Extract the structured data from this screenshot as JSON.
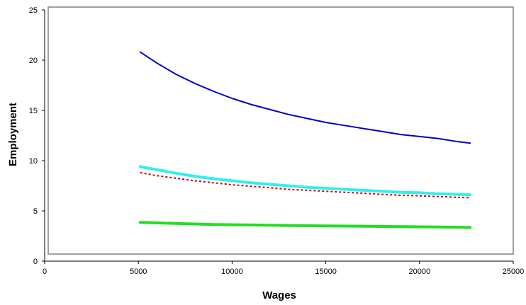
{
  "chart_data": {
    "type": "line",
    "title": "",
    "xlabel": "Wages",
    "ylabel": "Employment",
    "xlim": [
      0,
      25000
    ],
    "ylim": [
      0,
      25
    ],
    "x_ticks": [
      0,
      5000,
      10000,
      15000,
      20000,
      25000
    ],
    "y_ticks": [
      0,
      5,
      10,
      15,
      20,
      25
    ],
    "grid": false,
    "legend": "none",
    "plot_area_fill": "#ffffff",
    "series": [
      {
        "color": "#0000cc",
        "style": "solid-thin",
        "x": [
          5100,
          6000,
          7000,
          8000,
          9000,
          10000,
          11000,
          12000,
          13000,
          14000,
          15000,
          16000,
          17000,
          18000,
          19000,
          20000,
          21000,
          22000,
          22700
        ],
        "y": [
          20.8,
          19.7,
          18.6,
          17.7,
          16.9,
          16.2,
          15.6,
          15.1,
          14.6,
          14.2,
          13.8,
          13.5,
          13.2,
          12.9,
          12.6,
          12.4,
          12.2,
          11.9,
          11.75
        ]
      },
      {
        "color": "#33eeee",
        "style": "solid-thick",
        "x": [
          5100,
          6000,
          7000,
          8000,
          9000,
          10000,
          11000,
          12000,
          13000,
          14000,
          15000,
          16000,
          17000,
          18000,
          19000,
          20000,
          21000,
          22000,
          22700
        ],
        "y": [
          9.4,
          9.1,
          8.75,
          8.45,
          8.2,
          8.0,
          7.8,
          7.65,
          7.5,
          7.35,
          7.25,
          7.15,
          7.05,
          6.95,
          6.85,
          6.8,
          6.7,
          6.65,
          6.6
        ]
      },
      {
        "color": "#cc0000",
        "style": "dashed",
        "x": [
          5100,
          6000,
          7000,
          8000,
          9000,
          10000,
          11000,
          12000,
          13000,
          14000,
          15000,
          16000,
          17000,
          18000,
          19000,
          20000,
          21000,
          22000,
          22700
        ],
        "y": [
          8.8,
          8.5,
          8.25,
          8.0,
          7.8,
          7.6,
          7.45,
          7.3,
          7.15,
          7.05,
          6.95,
          6.85,
          6.75,
          6.65,
          6.55,
          6.5,
          6.42,
          6.35,
          6.3
        ]
      },
      {
        "color": "#22dd22",
        "style": "solid-thick",
        "x": [
          5100,
          7000,
          9000,
          11000,
          13000,
          15000,
          17000,
          19000,
          21000,
          22700
        ],
        "y": [
          3.85,
          3.75,
          3.65,
          3.6,
          3.55,
          3.5,
          3.47,
          3.43,
          3.4,
          3.35
        ]
      }
    ]
  }
}
